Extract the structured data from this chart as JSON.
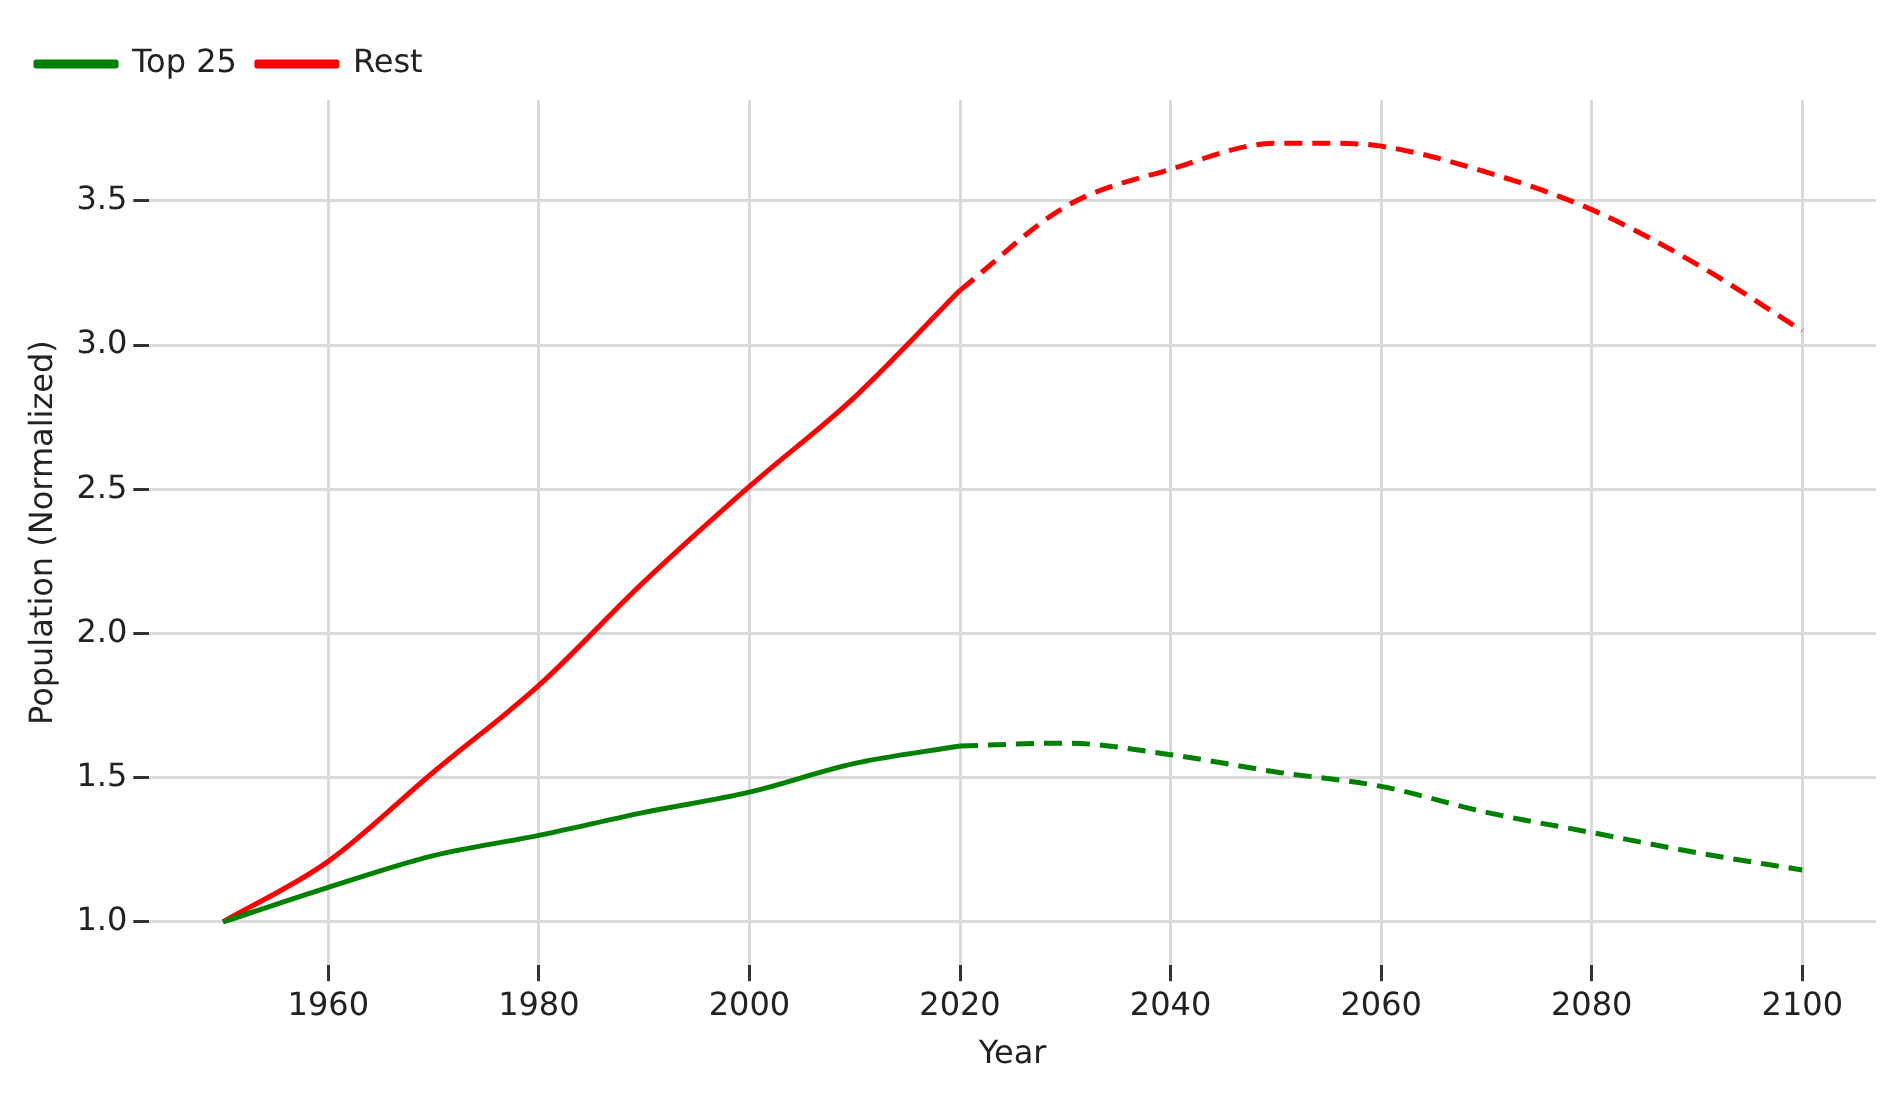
{
  "chart_data": {
    "type": "line",
    "xlabel": "Year",
    "ylabel": "Population (Normalized)",
    "xlim": [
      1943,
      2107
    ],
    "ylim": [
      0.85,
      3.85
    ],
    "xticks": [
      1960,
      1980,
      2000,
      2020,
      2040,
      2060,
      2080,
      2100
    ],
    "yticks": [
      {
        "value": 1,
        "label": "1.0"
      },
      1.5,
      {
        "value": 2,
        "label": "2.0"
      },
      2.5,
      {
        "value": 3,
        "label": "3.0"
      },
      3.5
    ],
    "grid": true,
    "legend": "top left",
    "marker": "none",
    "series": [
      {
        "name": "Top 25",
        "color": "#008000",
        "line_style": "solid",
        "x": [
          1950,
          1960,
          1970,
          1980,
          1990,
          2000,
          2010,
          2020
        ],
        "values": [
          1.0,
          1.12,
          1.23,
          1.3,
          1.38,
          1.45,
          1.55,
          1.61
        ]
      },
      {
        "name": "Rest",
        "color": "#ff0000",
        "line_style": "solid",
        "x": [
          1950,
          1960,
          1970,
          1980,
          1990,
          2000,
          2010,
          2020
        ],
        "values": [
          1.0,
          1.21,
          1.52,
          1.82,
          2.18,
          2.51,
          2.82,
          3.19
        ]
      },
      {
        "color": "#008000",
        "line_style": "dashed",
        "x": [
          2020,
          2030,
          2040,
          2050,
          2060,
          2070,
          2080,
          2090,
          2100
        ],
        "values": [
          1.61,
          1.62,
          1.58,
          1.52,
          1.47,
          1.38,
          1.31,
          1.24,
          1.18
        ]
      },
      {
        "color": "#ff0000",
        "line_style": "dashed",
        "x": [
          2020,
          2030,
          2040,
          2050,
          2055,
          2060,
          2070,
          2080,
          2090,
          2100
        ],
        "values": [
          3.19,
          3.48,
          3.61,
          3.7,
          3.7,
          3.69,
          3.6,
          3.47,
          3.28,
          3.05
        ]
      }
    ]
  }
}
